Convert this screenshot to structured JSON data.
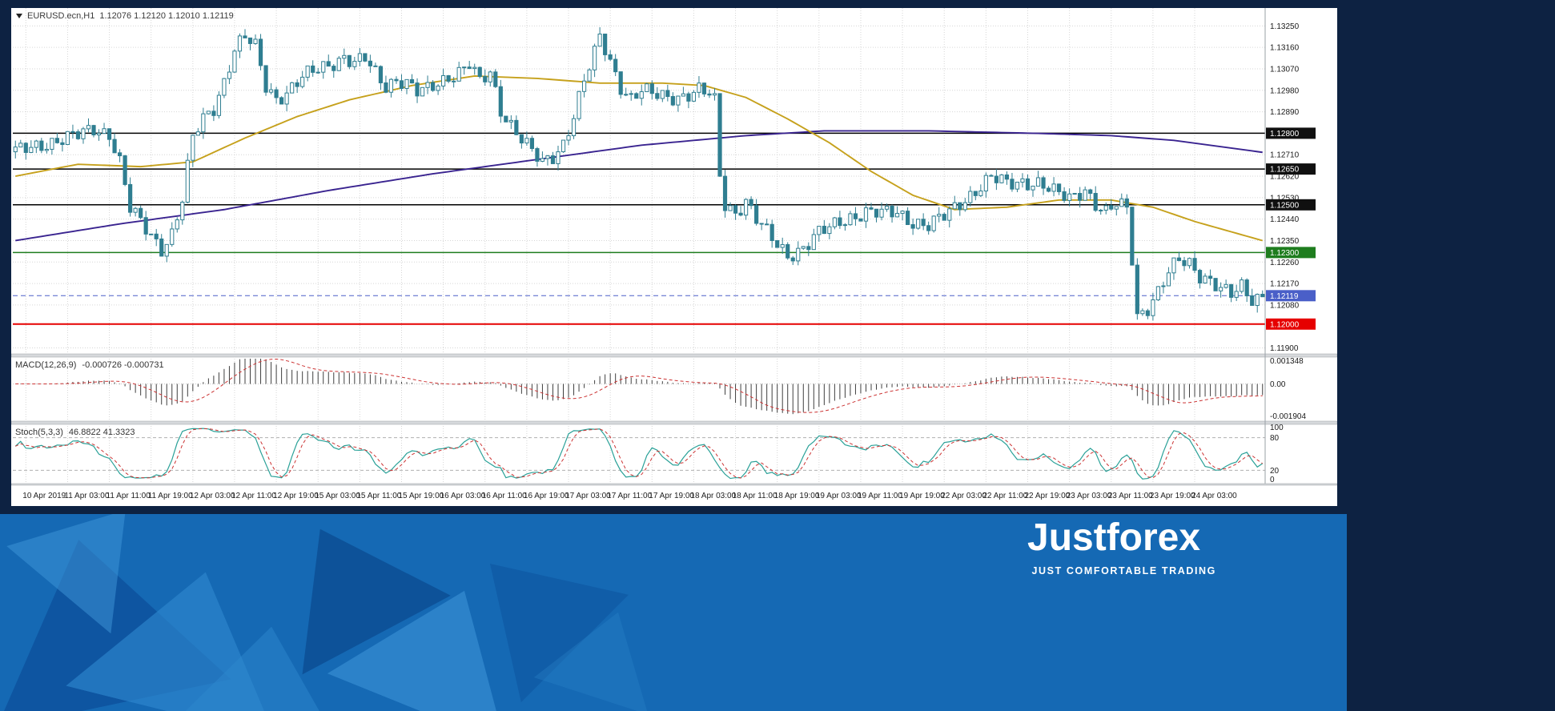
{
  "header": {
    "symbol": "EURUSD.ecn,H1",
    "ohlc": "1.12076 1.12120 1.12010 1.12119"
  },
  "footer": {
    "logo": "Justforex",
    "tagline": "JUST COMFORTABLE TRADING",
    "band_color": "#1569b4"
  },
  "chart_data": {
    "type": "candlestick",
    "title": "EURUSD.ecn,H1",
    "num_candles": 240,
    "current_price": 1.12119,
    "candle_color": "#2f7e91",
    "grid_color": "#d6d6d6",
    "y_axis": {
      "min": 1.11875,
      "max": 1.13325,
      "grid_labels": [
        "1.13250",
        "1.13160",
        "1.13070",
        "1.12980",
        "1.12890",
        "1.12710",
        "1.12620",
        "1.12530",
        "1.12440",
        "1.12350",
        "1.12260",
        "1.12170",
        "1.12080",
        "1.11900"
      ],
      "badges": [
        {
          "label": "1.12800",
          "color": "#101010"
        },
        {
          "label": "1.12650",
          "color": "#101010"
        },
        {
          "label": "1.12500",
          "color": "#101010"
        },
        {
          "label": "1.12300",
          "color": "#1e7d1e"
        },
        {
          "label": "1.12119",
          "color": "#4a5fc8"
        },
        {
          "label": "1.12000",
          "color": "#e60000"
        }
      ]
    },
    "h_lines": [
      {
        "price": 1.128,
        "color": "#000000",
        "width": 1.5
      },
      {
        "price": 1.1265,
        "color": "#000000",
        "width": 1.5
      },
      {
        "price": 1.125,
        "color": "#000000",
        "width": 1.5
      },
      {
        "price": 1.123,
        "color": "#1e7d1e",
        "width": 1.6
      },
      {
        "price": 1.12,
        "color": "#e60000",
        "width": 2
      }
    ],
    "time_labels": [
      "10 Apr 2019",
      "11 Apr 03:00",
      "11 Apr 11:00",
      "11 Apr 19:00",
      "12 Apr 03:00",
      "12 Apr 11:00",
      "12 Apr 19:00",
      "15 Apr 03:00",
      "15 Apr 11:00",
      "15 Apr 19:00",
      "16 Apr 03:00",
      "16 Apr 11:00",
      "16 Apr 19:00",
      "17 Apr 03:00",
      "17 Apr 11:00",
      "17 Apr 19:00",
      "18 Apr 03:00",
      "18 Apr 11:00",
      "18 Apr 19:00",
      "19 Apr 03:00",
      "19 Apr 11:00",
      "19 Apr 19:00",
      "22 Apr 03:00",
      "22 Apr 11:00",
      "22 Apr 19:00",
      "23 Apr 03:00",
      "23 Apr 11:00",
      "23 Apr 19:00",
      "24 Apr 03:00"
    ],
    "price_path": [
      [
        0,
        1.1272
      ],
      [
        6,
        1.1276
      ],
      [
        12,
        1.1279
      ],
      [
        15,
        1.1282
      ],
      [
        18,
        1.128
      ],
      [
        20,
        1.1268
      ],
      [
        22,
        1.1248
      ],
      [
        25,
        1.124
      ],
      [
        28,
        1.1232
      ],
      [
        30,
        1.1238
      ],
      [
        32,
        1.1252
      ],
      [
        34,
        1.1278
      ],
      [
        36,
        1.1286
      ],
      [
        38,
        1.1291
      ],
      [
        40,
        1.1302
      ],
      [
        42,
        1.1315
      ],
      [
        44,
        1.132
      ],
      [
        46,
        1.1316
      ],
      [
        48,
        1.13
      ],
      [
        50,
        1.1295
      ],
      [
        52,
        1.1297
      ],
      [
        55,
        1.1303
      ],
      [
        58,
        1.1307
      ],
      [
        61,
        1.131
      ],
      [
        63,
        1.1312
      ],
      [
        65,
        1.1309
      ],
      [
        67,
        1.1311
      ],
      [
        69,
        1.1305
      ],
      [
        71,
        1.13
      ],
      [
        73,
        1.1303
      ],
      [
        75,
        1.1301
      ],
      [
        77,
        1.1297
      ],
      [
        79,
        1.1298
      ],
      [
        81,
        1.1301
      ],
      [
        83,
        1.1304
      ],
      [
        85,
        1.1306
      ],
      [
        87,
        1.1309
      ],
      [
        89,
        1.1301
      ],
      [
        91,
        1.1305
      ],
      [
        93,
        1.129
      ],
      [
        95,
        1.1284
      ],
      [
        97,
        1.1278
      ],
      [
        99,
        1.1272
      ],
      [
        101,
        1.1267
      ],
      [
        103,
        1.127
      ],
      [
        105,
        1.1276
      ],
      [
        107,
        1.1288
      ],
      [
        109,
        1.1302
      ],
      [
        111,
        1.1313
      ],
      [
        112,
        1.132
      ],
      [
        114,
        1.131
      ],
      [
        116,
        1.13
      ],
      [
        118,
        1.1295
      ],
      [
        120,
        1.1298
      ],
      [
        122,
        1.1296
      ],
      [
        125,
        1.1295
      ],
      [
        128,
        1.1296
      ],
      [
        131,
        1.1298
      ],
      [
        133,
        1.1296
      ],
      [
        134,
        1.1293
      ],
      [
        135,
        1.1262
      ],
      [
        136,
        1.125
      ],
      [
        138,
        1.1247
      ],
      [
        140,
        1.1252
      ],
      [
        142,
        1.1244
      ],
      [
        144,
        1.1238
      ],
      [
        146,
        1.1233
      ],
      [
        148,
        1.1229
      ],
      [
        150,
        1.1231
      ],
      [
        152,
        1.1234
      ],
      [
        154,
        1.1238
      ],
      [
        156,
        1.124
      ],
      [
        158,
        1.1243
      ],
      [
        160,
        1.1245
      ],
      [
        163,
        1.1247
      ],
      [
        166,
        1.1246
      ],
      [
        169,
        1.1247
      ],
      [
        172,
        1.1243
      ],
      [
        175,
        1.1241
      ],
      [
        178,
        1.1245
      ],
      [
        181,
        1.1251
      ],
      [
        184,
        1.1256
      ],
      [
        187,
        1.1261
      ],
      [
        190,
        1.1259
      ],
      [
        193,
        1.126
      ],
      [
        196,
        1.1259
      ],
      [
        199,
        1.1255
      ],
      [
        202,
        1.1253
      ],
      [
        205,
        1.1257
      ],
      [
        207,
        1.125
      ],
      [
        209,
        1.1246
      ],
      [
        211,
        1.125
      ],
      [
        213,
        1.1249
      ],
      [
        214,
        1.1228
      ],
      [
        215,
        1.1204
      ],
      [
        217,
        1.1207
      ],
      [
        219,
        1.1213
      ],
      [
        221,
        1.1221
      ],
      [
        223,
        1.1227
      ],
      [
        225,
        1.1226
      ],
      [
        227,
        1.1221
      ],
      [
        229,
        1.1218
      ],
      [
        231,
        1.1214
      ],
      [
        233,
        1.1212
      ],
      [
        235,
        1.1216
      ],
      [
        237,
        1.1211
      ],
      [
        239,
        1.1212
      ]
    ],
    "ma_fast": {
      "name": "MA fast (yellow)",
      "color": "#c6a11c",
      "path": [
        [
          0,
          1.1262
        ],
        [
          12,
          1.1267
        ],
        [
          24,
          1.1266
        ],
        [
          34,
          1.1268
        ],
        [
          44,
          1.1278
        ],
        [
          54,
          1.1287
        ],
        [
          64,
          1.1294
        ],
        [
          76,
          1.13
        ],
        [
          88,
          1.1304
        ],
        [
          100,
          1.1303
        ],
        [
          112,
          1.1301
        ],
        [
          124,
          1.1301
        ],
        [
          132,
          1.13
        ],
        [
          140,
          1.1295
        ],
        [
          148,
          1.1286
        ],
        [
          156,
          1.1276
        ],
        [
          164,
          1.1264
        ],
        [
          172,
          1.1254
        ],
        [
          180,
          1.1248
        ],
        [
          190,
          1.1249
        ],
        [
          200,
          1.1252
        ],
        [
          210,
          1.1252
        ],
        [
          218,
          1.1249
        ],
        [
          226,
          1.1243
        ],
        [
          239,
          1.1235
        ]
      ]
    },
    "ma_slow": {
      "name": "MA slow (purple)",
      "color": "#3a2490",
      "path": [
        [
          0,
          1.1235
        ],
        [
          20,
          1.1242
        ],
        [
          40,
          1.1248
        ],
        [
          60,
          1.1256
        ],
        [
          80,
          1.1263
        ],
        [
          100,
          1.1269
        ],
        [
          120,
          1.1275
        ],
        [
          140,
          1.1279
        ],
        [
          155,
          1.1281
        ],
        [
          175,
          1.1281
        ],
        [
          195,
          1.128
        ],
        [
          210,
          1.1279
        ],
        [
          222,
          1.1277
        ],
        [
          239,
          1.1272
        ]
      ]
    },
    "indicators": {
      "macd": {
        "label": "MACD(12,26,9)",
        "values": "-0.000726 -0.000731",
        "axis_labels": [
          "0.001348",
          "0.00",
          "-0.001904"
        ],
        "axis_max": 0.001348,
        "axis_min": -0.001904,
        "histogram_color": "#3f3f3f",
        "signal_color": "#cc3333"
      },
      "stoch": {
        "label": "Stoch(5,3,3)",
        "values": "46.8822 41.3323",
        "axis_labels": [
          "100",
          "80",
          "20",
          "0"
        ],
        "levels": [
          80,
          20
        ],
        "main_color": "#2aa198",
        "signal_color": "#cc3333"
      }
    }
  }
}
